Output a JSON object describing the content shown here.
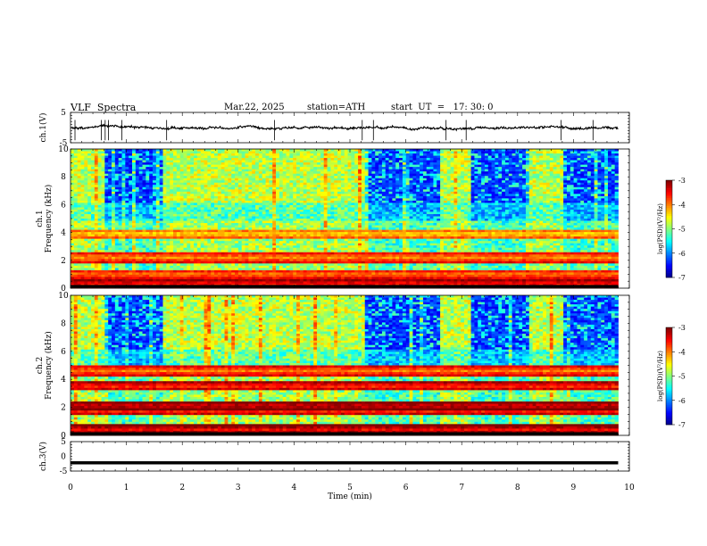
{
  "header": {
    "title": "VLF  Spectra",
    "date": "Mar.22, 2025",
    "station": "station=ATH",
    "start": "start  UT  =   17: 30: 0"
  },
  "chart_data": [
    {
      "type": "line",
      "panel": "ch1-waveform",
      "ylabel": "ch.1(V)",
      "ylim": [
        -5,
        5
      ],
      "y_ticks": [
        "5",
        "-5"
      ],
      "xlim": [
        0,
        10
      ],
      "trace_extent_min": [
        0,
        9.8
      ],
      "baseline_volts": 0,
      "noise_amplitude_volts": 0.6,
      "spikes_min": [
        0.08,
        0.55,
        0.62,
        0.68,
        0.92,
        1.72,
        3.65,
        5.22,
        5.42,
        6.72,
        7.08,
        8.78,
        9.35
      ]
    },
    {
      "type": "heatmap",
      "panel": "ch1-spectrogram",
      "ylabel": "ch.1\nFrequency (kHz)",
      "ylim": [
        0,
        10
      ],
      "y_ticks": [
        "0",
        "2",
        "4",
        "6",
        "8",
        "10"
      ],
      "xlim": [
        0,
        10
      ],
      "data_extent_min": [
        0,
        9.8
      ],
      "colorbar": {
        "label": "log(PSD)(V²/Hz)",
        "range": [
          -7,
          -3
        ],
        "ticks": [
          "-3",
          "-4",
          "-5",
          "-6",
          "-7"
        ]
      },
      "quiet_intervals_min": [
        [
          0.6,
          1.65
        ],
        [
          5.25,
          6.6
        ],
        [
          7.15,
          8.2
        ],
        [
          8.8,
          9.8
        ]
      ],
      "emission_bands_khz": [
        {
          "freq": 0.3,
          "level": -3.6
        },
        {
          "freq": 1.0,
          "level": -4.0
        },
        {
          "freq": 2.2,
          "level": -4.1
        },
        {
          "freq": 3.9,
          "level": -4.4
        }
      ]
    },
    {
      "type": "heatmap",
      "panel": "ch2-spectrogram",
      "ylabel": "ch.2\nFrequency (kHz)",
      "ylim": [
        0,
        10
      ],
      "y_ticks": [
        "0",
        "2",
        "4",
        "6",
        "8",
        "10"
      ],
      "xlim": [
        0,
        10
      ],
      "data_extent_min": [
        0,
        9.8
      ],
      "colorbar": {
        "label": "log(PSD)(V²/Hz)",
        "range": [
          -7,
          -3
        ],
        "ticks": [
          "-3",
          "-4",
          "-5",
          "-6",
          "-7"
        ]
      },
      "quiet_intervals_min": [
        [
          0.6,
          1.65
        ],
        [
          5.25,
          6.6
        ],
        [
          7.15,
          8.2
        ],
        [
          8.8,
          9.8
        ]
      ],
      "emission_bands_khz": [
        {
          "freq": 0.4,
          "level": -3.5
        },
        {
          "freq": 1.8,
          "level": -3.8
        },
        {
          "freq": 2.1,
          "level": -3.4
        },
        {
          "freq": 3.5,
          "level": -3.7
        },
        {
          "freq": 4.6,
          "level": -4.0
        }
      ]
    },
    {
      "type": "line",
      "panel": "ch3-waveform",
      "ylabel": "ch.3(V)",
      "ylim": [
        -5,
        5
      ],
      "y_ticks": [
        "5",
        "0",
        "-5"
      ],
      "xlim": [
        0,
        10
      ],
      "xlabel": "Time (min)",
      "x_ticks": [
        "0",
        "1",
        "2",
        "3",
        "4",
        "5",
        "6",
        "7",
        "8",
        "9",
        "10"
      ],
      "trace_extent_min": [
        0,
        9.8
      ],
      "baseline_volts": -2.2
    }
  ]
}
